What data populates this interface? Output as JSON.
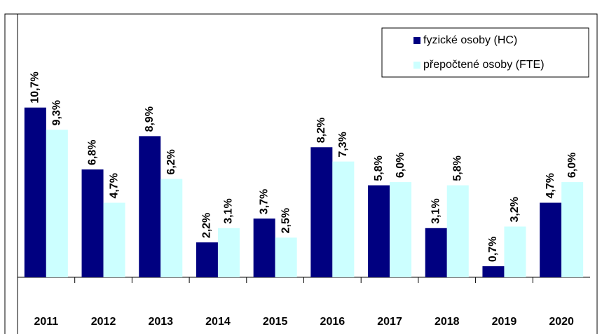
{
  "chart_data": {
    "type": "bar",
    "categories": [
      "2011",
      "2012",
      "2013",
      "2014",
      "2015",
      "2016",
      "2017",
      "2018",
      "2019",
      "2020"
    ],
    "series": [
      {
        "name": "fyzické osoby (HC)",
        "color": "#000080",
        "values": [
          10.7,
          6.8,
          8.9,
          2.2,
          3.7,
          8.2,
          5.8,
          3.1,
          0.7,
          4.7
        ],
        "value_labels": [
          "10,7%",
          "6,8%",
          "8,9%",
          "2,2%",
          "3,7%",
          "8,2%",
          "5,8%",
          "3,1%",
          "0,7%",
          "4,7%"
        ]
      },
      {
        "name": "přepočtené osoby (FTE)",
        "color": "#ccffff",
        "values": [
          9.3,
          4.7,
          6.2,
          3.1,
          2.5,
          7.3,
          6.0,
          5.8,
          3.2,
          6.0
        ],
        "value_labels": [
          "9,3%",
          "4,7%",
          "6,2%",
          "3,1%",
          "2,5%",
          "7,3%",
          "6,0%",
          "5,8%",
          "3,2%",
          "6,0%"
        ]
      }
    ],
    "ylim": [
      0,
      16.6
    ],
    "legend": "top-right"
  }
}
